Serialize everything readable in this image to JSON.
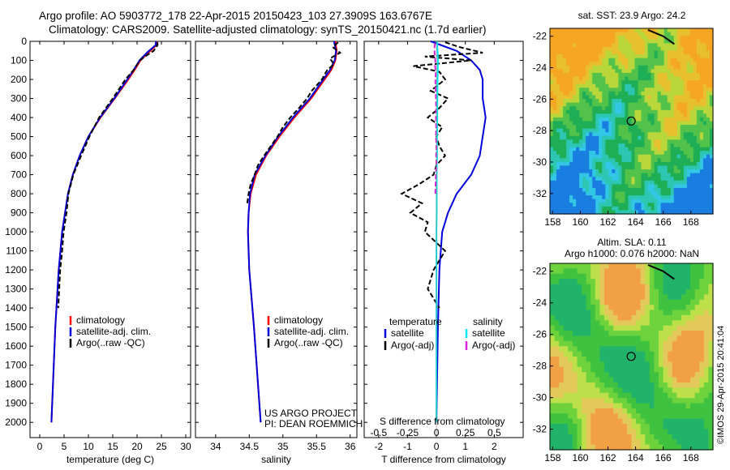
{
  "header": {
    "line1": "Argo profile: AO 5903772_178 22-Apr-2015 20150423_103 27.3909S 163.6767E",
    "line2": "Climatology: CARS2009. Satellite-adjusted climatology: synTS_20150421.nc (1.7d earlier)"
  },
  "side_label": "©IMOS 29-Apr-2015 20:41:04",
  "colors": {
    "climatology": "#ff0000",
    "satellite": "#0000dd",
    "argo": "#000000",
    "salinity_satellite": "#00e5ee",
    "salinity_argo": "#dd22dd"
  },
  "chart_data": [
    {
      "type": "line",
      "name": "temperature-profile",
      "xlabel": "temperature (deg C)",
      "ylabel": "",
      "xlim": [
        -2,
        31
      ],
      "ylim": [
        2080,
        0
      ],
      "xticks": [
        0,
        5,
        10,
        15,
        20,
        25,
        30
      ],
      "yticks": [
        0,
        100,
        200,
        300,
        400,
        500,
        600,
        700,
        800,
        900,
        1000,
        1100,
        1200,
        1300,
        1400,
        1500,
        1600,
        1700,
        1800,
        1900,
        2000
      ],
      "legend": [
        "climatology",
        "satellite-adj. clim.",
        "Argo(..raw -QC)"
      ],
      "legend_position": "lower-right",
      "series": [
        {
          "name": "climatology",
          "depth": [
            0,
            20,
            60,
            100,
            150,
            200,
            300,
            400,
            500,
            600,
            700,
            800,
            1000,
            1200,
            1500,
            2000
          ],
          "values": [
            24.1,
            24.0,
            22.3,
            20.7,
            19.5,
            18.2,
            15.4,
            12.5,
            10.0,
            8.2,
            6.8,
            5.8,
            4.6,
            3.9,
            3.2,
            2.4
          ]
        },
        {
          "name": "satellite-adj. clim.",
          "depth": [
            0,
            20,
            60,
            100,
            150,
            200,
            300,
            400,
            500,
            600,
            700,
            800,
            1000,
            1200,
            1500,
            2000
          ],
          "values": [
            23.9,
            23.8,
            22.0,
            20.5,
            19.3,
            18.0,
            15.3,
            12.4,
            10.0,
            8.2,
            6.8,
            5.8,
            4.6,
            3.9,
            3.2,
            2.4
          ]
        },
        {
          "name": "Argo(..raw -QC)",
          "depth": [
            5,
            20,
            50,
            80,
            100,
            150,
            200,
            300,
            400,
            500,
            600,
            700,
            800,
            900,
            1000,
            1100,
            1200,
            1300,
            1400
          ],
          "values": [
            24.2,
            24.2,
            23.4,
            21.6,
            20.6,
            19.3,
            17.6,
            15.0,
            12.2,
            10.2,
            8.5,
            6.9,
            5.9,
            5.5,
            4.9,
            4.6,
            4.2,
            4.0,
            3.8
          ]
        }
      ]
    },
    {
      "type": "line",
      "name": "salinity-profile",
      "xlabel": "salinity",
      "ylabel": "",
      "xlim": [
        33.7,
        36.1
      ],
      "ylim": [
        2080,
        0
      ],
      "xticks": [
        34,
        34.5,
        35,
        35.5,
        36
      ],
      "legend": [
        "climatology",
        "satellite-adj. clim.",
        "Argo(..raw -QC)"
      ],
      "legend_position": "lower-right",
      "annotation": [
        "US ARGO PROJECT",
        "PI: DEAN ROEMMICH"
      ],
      "series": [
        {
          "name": "climatology",
          "depth": [
            0,
            50,
            100,
            150,
            200,
            300,
            400,
            500,
            600,
            700,
            800,
            900,
            1000,
            1200,
            1500,
            2000
          ],
          "values": [
            35.78,
            35.8,
            35.78,
            35.72,
            35.62,
            35.42,
            35.17,
            34.95,
            34.75,
            34.6,
            34.52,
            34.49,
            34.48,
            34.5,
            34.57,
            34.67
          ]
        },
        {
          "name": "satellite-adj. clim.",
          "depth": [
            0,
            50,
            100,
            150,
            200,
            300,
            400,
            500,
            600,
            700,
            800,
            900,
            1000,
            1200,
            1500,
            2000
          ],
          "values": [
            35.76,
            35.79,
            35.77,
            35.7,
            35.6,
            35.4,
            35.15,
            34.93,
            34.74,
            34.58,
            34.51,
            34.49,
            34.48,
            34.5,
            34.57,
            34.67
          ]
        },
        {
          "name": "Argo(..raw -QC)",
          "depth": [
            5,
            30,
            60,
            90,
            120,
            150,
            200,
            260,
            300,
            350,
            400,
            450,
            500,
            550,
            600,
            650,
            700,
            750,
            800,
            850
          ],
          "values": [
            35.82,
            35.74,
            35.85,
            35.7,
            35.76,
            35.66,
            35.58,
            35.43,
            35.36,
            35.24,
            35.11,
            35.0,
            34.92,
            34.82,
            34.72,
            34.63,
            34.58,
            34.52,
            34.49,
            34.47
          ]
        }
      ]
    },
    {
      "type": "line",
      "name": "difference-from-climatology",
      "xlabel": "T difference from climatology",
      "xlabel_top": "S difference from climatology",
      "xlim": [
        -2.5,
        3.0
      ],
      "ylim": [
        2080,
        0
      ],
      "xticks": [
        -2,
        -1,
        0,
        1,
        2
      ],
      "s_xticks": [
        "-0.5",
        "-0.25",
        "0",
        "0.25",
        "0.5"
      ],
      "legend": {
        "temperature_header": "temperature",
        "salinity_header": "salinity",
        "temperature_items": [
          "satellite",
          "Argo(-adj)"
        ],
        "salinity_items": [
          "satellite",
          "Argo(-adj)"
        ]
      },
      "series": [
        {
          "name": "temperature satellite",
          "depth": [
            0,
            50,
            100,
            150,
            200,
            300,
            400,
            500,
            600,
            700,
            800,
            900,
            1000,
            1200,
            1500,
            2000
          ],
          "values": [
            -0.2,
            0.7,
            1.2,
            1.5,
            1.6,
            1.6,
            1.7,
            1.6,
            1.5,
            1.2,
            0.7,
            0.4,
            0.2,
            0.1,
            0.05,
            0.0
          ]
        },
        {
          "name": "temperature Argo(-adj)",
          "depth": [
            5,
            30,
            60,
            80,
            100,
            130,
            160,
            200,
            260,
            300,
            350,
            400,
            450,
            500,
            550,
            600,
            650,
            700,
            750,
            800,
            850,
            900,
            950,
            1000,
            1100,
            1200,
            1300,
            1400
          ],
          "values": [
            0.3,
            0.8,
            1.6,
            -0.4,
            1.2,
            -0.8,
            0.1,
            0.3,
            -0.2,
            0.4,
            0.1,
            -0.3,
            0.2,
            0.0,
            0.1,
            0.3,
            0.0,
            -0.1,
            -0.6,
            -1.2,
            -0.5,
            -0.9,
            -0.3,
            -0.4,
            0.3,
            -0.1,
            -0.3,
            0.1
          ]
        },
        {
          "name": "salinity satellite",
          "depth": [
            0,
            50,
            100,
            200,
            300,
            400,
            500,
            600,
            700,
            800,
            900,
            1000,
            1200,
            1500,
            2000
          ],
          "values": [
            0.02,
            0.04,
            0.05,
            0.04,
            0.03,
            0.03,
            0.02,
            0.02,
            0.01,
            0.01,
            0.01,
            0.0,
            0.0,
            0.0,
            0.0
          ]
        },
        {
          "name": "salinity Argo(-adj)",
          "depth": [
            10,
            40,
            70,
            100,
            130,
            160,
            200,
            250,
            300,
            350,
            400,
            450,
            500,
            550,
            600,
            650,
            700,
            750,
            800
          ],
          "values": [
            -0.05,
            -0.07,
            -0.06,
            -0.04,
            -0.05,
            -0.02,
            -0.04,
            -0.03,
            -0.02,
            -0.01,
            -0.02,
            -0.01,
            -0.02,
            0.0,
            -0.01,
            0.0,
            -0.02,
            -0.03,
            -0.04
          ]
        }
      ]
    },
    {
      "type": "heatmap",
      "name": "sst-map",
      "title": "sat. SST: 23.9 Argo: 24.2",
      "xticks": [
        158,
        160,
        162,
        164,
        166,
        168
      ],
      "yticks": [
        -22,
        -24,
        -26,
        -28,
        -30,
        -32
      ],
      "xlim": [
        157.8,
        169.6
      ],
      "ylim": [
        -33.3,
        -21.5
      ],
      "argo_position": {
        "lon": 163.68,
        "lat": -27.39
      }
    },
    {
      "type": "heatmap",
      "name": "sla-map",
      "title_line1": "Altim. SLA: 0.11",
      "title_line2": "Argo h1000: 0.076 h2000: NaN",
      "xticks": [
        158,
        160,
        162,
        164,
        166,
        168
      ],
      "yticks": [
        -22,
        -24,
        -26,
        -28,
        -30,
        -32
      ],
      "xlim": [
        157.8,
        169.6
      ],
      "ylim": [
        -33.3,
        -21.5
      ],
      "argo_position": {
        "lon": 163.68,
        "lat": -27.39
      }
    }
  ]
}
